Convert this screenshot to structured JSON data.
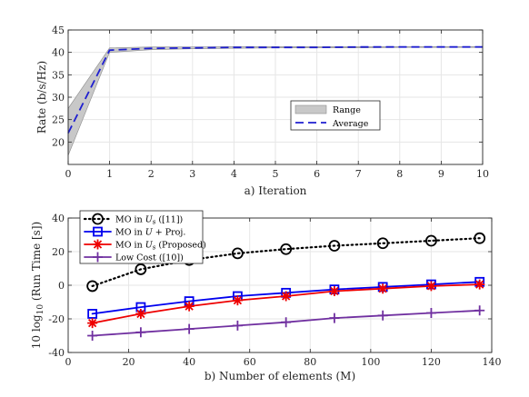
{
  "chart_data": [
    {
      "type": "line",
      "xlabel": "a) Iteration",
      "ylabel": "Rate (b/s/Hz)",
      "xlim": [
        0,
        10
      ],
      "ylim": [
        15,
        45
      ],
      "xticks": [
        0,
        1,
        2,
        3,
        4,
        5,
        6,
        7,
        8,
        9,
        10
      ],
      "yticks": [
        20,
        25,
        30,
        35,
        40,
        45
      ],
      "grid": true,
      "legend_position": "center-right",
      "series": [
        {
          "name": "Range",
          "style": "band",
          "color": "#c8c8c8",
          "x": [
            0,
            1,
            2,
            3,
            4,
            5,
            6,
            7,
            8,
            9,
            10
          ],
          "lower": [
            17.0,
            40.0,
            40.6,
            40.8,
            40.9,
            41.0,
            41.0,
            41.0,
            41.1,
            41.1,
            41.1
          ],
          "upper": [
            27.5,
            41.0,
            41.2,
            41.2,
            41.3,
            41.3,
            41.3,
            41.3,
            41.3,
            41.3,
            41.3
          ]
        },
        {
          "name": "Average",
          "style": "dashed",
          "color": "#1f1fd0",
          "x": [
            0,
            1,
            2,
            3,
            4,
            5,
            6,
            7,
            8,
            9,
            10
          ],
          "values": [
            22.0,
            40.5,
            40.9,
            41.0,
            41.1,
            41.1,
            41.1,
            41.2,
            41.2,
            41.2,
            41.2
          ]
        }
      ]
    },
    {
      "type": "line",
      "xlabel": "b) Number of elements (M)",
      "ylabel": "10 log10 (Run Time [s])",
      "xlim": [
        0,
        140
      ],
      "ylim": [
        -40,
        40
      ],
      "xticks": [
        0,
        20,
        40,
        60,
        80,
        100,
        120,
        140
      ],
      "yticks": [
        -40,
        -20,
        0,
        20,
        40
      ],
      "grid": true,
      "legend_position": "top-left",
      "x": [
        8,
        24,
        40,
        56,
        72,
        88,
        104,
        120,
        136
      ],
      "series": [
        {
          "name": "MO in Us ([11])",
          "color": "#000000",
          "line": "dotted",
          "marker": "circle",
          "values": [
            -0.5,
            9.5,
            15.0,
            19.0,
            21.5,
            23.5,
            25.0,
            26.5,
            28.0
          ]
        },
        {
          "name": "MO in U + Proj.",
          "color": "#0000ee",
          "line": "solid",
          "marker": "square",
          "values": [
            -17.0,
            -13.0,
            -9.5,
            -6.5,
            -4.5,
            -2.5,
            -1.0,
            0.5,
            2.0
          ]
        },
        {
          "name": "MO in Us (Proposed)",
          "color": "#ee0000",
          "line": "solid",
          "marker": "asterisk",
          "values": [
            -22.5,
            -17.0,
            -12.5,
            -9.0,
            -6.5,
            -3.5,
            -2.0,
            -0.5,
            0.5
          ]
        },
        {
          "name": "Low Cost ([10])",
          "color": "#7030a0",
          "line": "solid",
          "marker": "plus",
          "values": [
            -30.0,
            -28.0,
            -26.0,
            -24.0,
            -22.0,
            -19.5,
            -18.0,
            -16.5,
            -15.0
          ]
        }
      ]
    }
  ]
}
